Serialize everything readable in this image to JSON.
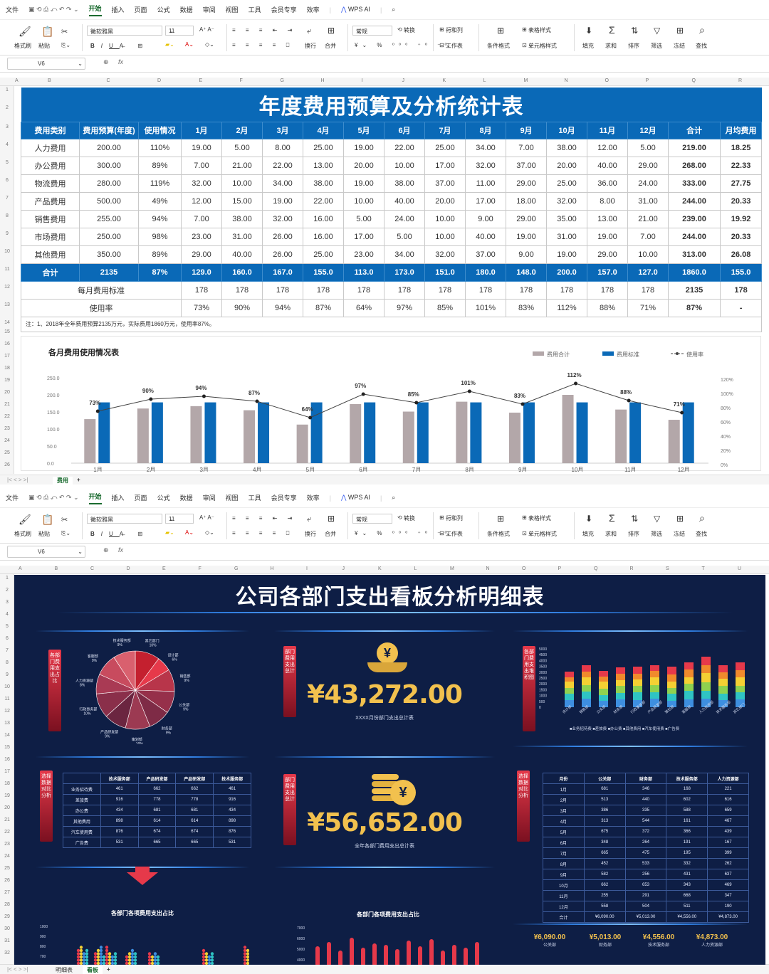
{
  "menu": {
    "file": "文件",
    "tabs": [
      "开始",
      "插入",
      "页面",
      "公式",
      "数据",
      "审阅",
      "视图",
      "工具",
      "会员专享",
      "效率"
    ],
    "wps_ai": "WPS AI"
  },
  "ribbon": {
    "format_painter": "格式刷",
    "paste": "粘贴",
    "font": "微软雅黑",
    "size": "11",
    "wrap": "换行",
    "merge": "合并",
    "number_format": "常规",
    "convert": "转换",
    "rows_cols": "行和列",
    "worksheet": "工作表",
    "cond_format": "条件格式",
    "table_style": "表格样式",
    "cell_style": "单元格样式",
    "fill": "填充",
    "sum": "求和",
    "sort": "排序",
    "filter": "筛选",
    "freeze": "冻结",
    "find": "查找"
  },
  "name_box": "V6",
  "fx": "fx",
  "sheet1": {
    "col_letters": [
      "A",
      "B",
      "C",
      "D",
      "E",
      "F",
      "G",
      "H",
      "I",
      "J",
      "K",
      "L",
      "M",
      "N",
      "O",
      "P",
      "Q",
      "R"
    ],
    "title": "年度费用预算及分析统计表",
    "headers": [
      "费用类别",
      "费用预算(年度)",
      "使用情况",
      "1月",
      "2月",
      "3月",
      "4月",
      "5月",
      "6月",
      "7月",
      "8月",
      "9月",
      "10月",
      "11月",
      "12月",
      "合计",
      "月均费用"
    ],
    "rows": [
      [
        "人力费用",
        "200.00",
        "110%",
        "19.00",
        "5.00",
        "8.00",
        "25.00",
        "19.00",
        "22.00",
        "25.00",
        "34.00",
        "7.00",
        "38.00",
        "12.00",
        "5.00",
        "219.00",
        "18.25"
      ],
      [
        "办公费用",
        "300.00",
        "89%",
        "7.00",
        "21.00",
        "22.00",
        "13.00",
        "20.00",
        "10.00",
        "17.00",
        "32.00",
        "37.00",
        "20.00",
        "40.00",
        "29.00",
        "268.00",
        "22.33"
      ],
      [
        "物流费用",
        "280.00",
        "119%",
        "32.00",
        "10.00",
        "34.00",
        "38.00",
        "19.00",
        "38.00",
        "37.00",
        "11.00",
        "29.00",
        "25.00",
        "36.00",
        "24.00",
        "333.00",
        "27.75"
      ],
      [
        "产品费用",
        "500.00",
        "49%",
        "12.00",
        "15.00",
        "19.00",
        "22.00",
        "10.00",
        "40.00",
        "20.00",
        "17.00",
        "18.00",
        "32.00",
        "8.00",
        "31.00",
        "244.00",
        "20.33"
      ],
      [
        "销售费用",
        "255.00",
        "94%",
        "7.00",
        "38.00",
        "32.00",
        "16.00",
        "5.00",
        "24.00",
        "10.00",
        "9.00",
        "29.00",
        "35.00",
        "13.00",
        "21.00",
        "239.00",
        "19.92"
      ],
      [
        "市场费用",
        "250.00",
        "98%",
        "23.00",
        "31.00",
        "26.00",
        "16.00",
        "17.00",
        "5.00",
        "10.00",
        "40.00",
        "19.00",
        "31.00",
        "19.00",
        "7.00",
        "244.00",
        "20.33"
      ],
      [
        "其他费用",
        "350.00",
        "89%",
        "29.00",
        "40.00",
        "26.00",
        "25.00",
        "23.00",
        "34.00",
        "32.00",
        "37.00",
        "9.00",
        "19.00",
        "29.00",
        "10.00",
        "313.00",
        "26.08"
      ]
    ],
    "total": [
      "合计",
      "2135",
      "87%",
      "129.0",
      "160.0",
      "167.0",
      "155.0",
      "113.0",
      "173.0",
      "151.0",
      "180.0",
      "148.0",
      "200.0",
      "157.0",
      "127.0",
      "1860.0",
      "155.0"
    ],
    "standard_label": "每月费用标准",
    "standard": [
      "178",
      "178",
      "178",
      "178",
      "178",
      "178",
      "178",
      "178",
      "178",
      "178",
      "178",
      "178",
      "2135",
      "178"
    ],
    "rate_label": "使用率",
    "rate": [
      "73%",
      "90%",
      "94%",
      "87%",
      "64%",
      "97%",
      "85%",
      "101%",
      "83%",
      "112%",
      "88%",
      "71%",
      "87%",
      "-"
    ],
    "note": "注：1、2018年全年费用预算2135万元，实际费用1860万元，使用率87%。",
    "tab": "费用"
  },
  "chart_data": {
    "type": "bar",
    "title": "各月费用使用情况表",
    "categories": [
      "1月",
      "2月",
      "3月",
      "4月",
      "5月",
      "6月",
      "7月",
      "8月",
      "9月",
      "10月",
      "11月",
      "12月"
    ],
    "series": [
      {
        "name": "费用合计",
        "values": [
          129,
          160,
          167,
          155,
          113,
          173,
          151,
          180,
          148,
          200,
          157,
          127
        ],
        "color": "#b3a7a9"
      },
      {
        "name": "费用标准",
        "values": [
          178,
          178,
          178,
          178,
          178,
          178,
          178,
          178,
          178,
          178,
          178,
          178
        ],
        "color": "#0a69b7"
      },
      {
        "name": "使用率",
        "type": "line",
        "axis": "right",
        "values": [
          73,
          90,
          94,
          87,
          64,
          97,
          85,
          101,
          83,
          112,
          88,
          71
        ],
        "labels": [
          "73%",
          "90%",
          "94%",
          "87%",
          "64%",
          "97%",
          "85%",
          "101%",
          "83%",
          "112%",
          "88%",
          "71%"
        ],
        "color": "#444444"
      }
    ],
    "ylim": [
      0,
      250
    ],
    "yticks": [
      "0.0",
      "50.0",
      "100.0",
      "150.0",
      "200.0",
      "250.0"
    ],
    "y2lim": [
      0,
      120
    ],
    "y2ticks": [
      "0%",
      "20%",
      "40%",
      "60%",
      "80%",
      "100%",
      "120%"
    ],
    "legend": "top-right"
  },
  "sheet2": {
    "col_letters": [
      "A",
      "B",
      "C",
      "D",
      "E",
      "F",
      "G",
      "H",
      "I",
      "J",
      "K",
      "L",
      "M",
      "N",
      "O",
      "P",
      "Q",
      "R",
      "S",
      "T",
      "U"
    ],
    "title": "公司各部门支出看板分析明细表",
    "tag_pie": "各部门费用支出占比",
    "tag_total": "部门费用支出总计",
    "tag_stack": "各部门费用支出堆积图",
    "tag_compare": "选择数据对比分析",
    "tag_total2": "部门费用支出总计",
    "tag_compare2": "选择数据对比分析",
    "pie_labels": [
      "其它部门",
      "设计部",
      "销售部",
      "公关部",
      "财务部",
      "策划部",
      "产品研发部",
      "行政事务部",
      "人力资源部",
      "客服部",
      "技术服务部"
    ],
    "pie_pcts": [
      "10%",
      "6%",
      "9%",
      "9%",
      "9%",
      "10%",
      "9%",
      "10%",
      "8%",
      "9%",
      "9%"
    ],
    "money1": "¥43,272.00",
    "money1_caption": "XXXX月份部门支出总计表",
    "money2": "¥56,652.00",
    "money2_caption": "全年各部门费用支出总计表",
    "stack_y": [
      "5000",
      "4500",
      "4000",
      "3500",
      "3000",
      "2500",
      "2000",
      "1500",
      "1000",
      "500",
      "0"
    ],
    "stack_legend": "■业务招待费 ■差旅费 ■办公费 ■其他费用 ■汽车使用费 ■广告费",
    "stack_cats": [
      "设计部",
      "销售部",
      "公关部",
      "财务部",
      "行政事务部",
      "产品研发部",
      "策划部",
      "客服部",
      "人力资源部",
      "技术服务部",
      "其它部门"
    ],
    "left_table": [
      [
        "",
        "技术服务部",
        "产品研发部",
        "产品研发部",
        "技术服务部"
      ],
      [
        "业务招待费",
        "461",
        "662",
        "662",
        "461"
      ],
      [
        "差旅费",
        "916",
        "778",
        "778",
        "916"
      ],
      [
        "办公费",
        "434",
        "681",
        "681",
        "434"
      ],
      [
        "其他费用",
        "898",
        "614",
        "614",
        "898"
      ],
      [
        "汽车使用费",
        "876",
        "674",
        "674",
        "876"
      ],
      [
        "广告费",
        "531",
        "665",
        "665",
        "531"
      ]
    ],
    "right_table": [
      [
        "月份",
        "公关部",
        "财务部",
        "技术服务部",
        "人力资源部"
      ],
      [
        "1月",
        "681",
        "346",
        "168",
        "221"
      ],
      [
        "2月",
        "513",
        "440",
        "602",
        "616"
      ],
      [
        "3月",
        "386",
        "335",
        "588",
        "659"
      ],
      [
        "4月",
        "313",
        "544",
        "161",
        "467"
      ],
      [
        "5月",
        "675",
        "372",
        "366",
        "439"
      ],
      [
        "6月",
        "348",
        "264",
        "191",
        "167"
      ],
      [
        "7月",
        "665",
        "475",
        "195",
        "399"
      ],
      [
        "8月",
        "452",
        "533",
        "332",
        "262"
      ],
      [
        "9月",
        "582",
        "256",
        "431",
        "637"
      ],
      [
        "10月",
        "662",
        "653",
        "343",
        "469"
      ],
      [
        "11月",
        "255",
        "291",
        "668",
        "347"
      ],
      [
        "12月",
        "558",
        "504",
        "511",
        "190"
      ],
      [
        "合计",
        "¥6,090.00",
        "¥5,013.00",
        "¥4,556.00",
        "¥4,873.00"
      ]
    ],
    "foot": [
      [
        "¥6,090.00",
        "公关部"
      ],
      [
        "¥5,013.00",
        "财务部"
      ],
      [
        "¥4,556.00",
        "技术服务部"
      ],
      [
        "¥4,873.00",
        "人力资源部"
      ]
    ],
    "bottom_left_title": "各部门各项费用支出占比",
    "bottom_left_y": [
      "1000",
      "900",
      "800",
      "700"
    ],
    "bottom_mid_title": "各部门各项费用支出占比",
    "bottom_mid_y": [
      "7000",
      "6000",
      "5000",
      "4000"
    ],
    "tabs": [
      "明细表",
      "看板"
    ]
  }
}
